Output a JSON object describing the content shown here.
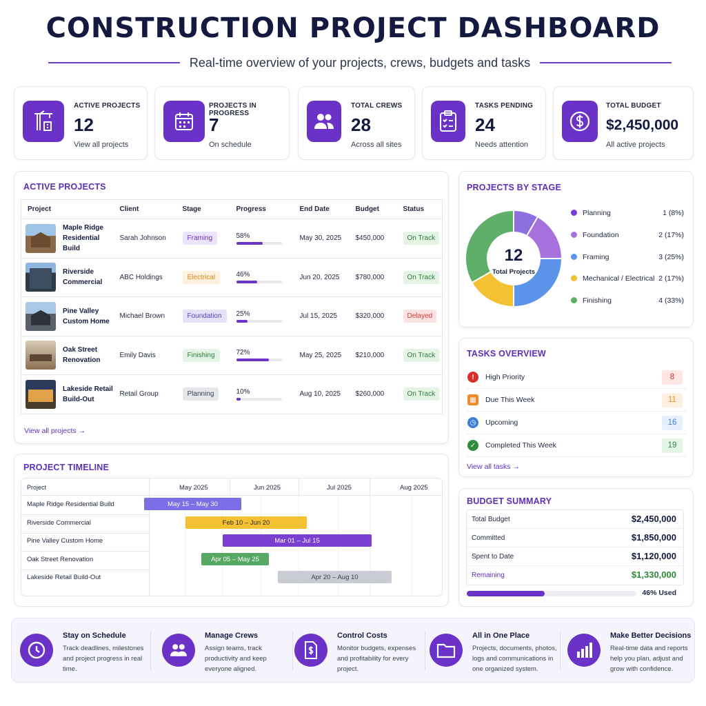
{
  "header": {
    "title": "CONSTRUCTION PROJECT DASHBOARD",
    "subtitle": "Real-time overview of your projects, crews, budgets and tasks"
  },
  "stats": [
    {
      "label": "ACTIVE PROJECTS",
      "value": "12",
      "note": "View all projects",
      "icon": "crane-icon"
    },
    {
      "label": "PROJECTS IN PROGRESS",
      "value": "7",
      "note": "On schedule",
      "icon": "calendar-icon"
    },
    {
      "label": "TOTAL CREWS",
      "value": "28",
      "note": "Across all sites",
      "icon": "crew-icon"
    },
    {
      "label": "TASKS PENDING",
      "value": "24",
      "note": "Needs attention",
      "icon": "clipboard-icon"
    },
    {
      "label": "TOTAL BUDGET",
      "value": "$2,450,000",
      "note": "All active projects",
      "icon": "dollar-icon"
    }
  ],
  "active_projects": {
    "title": "ACTIVE PROJECTS",
    "columns": [
      "Project",
      "Client",
      "Stage",
      "Progress",
      "End Date",
      "Budget",
      "Status"
    ],
    "rows": [
      {
        "project": "Maple Ridge Residential Build",
        "client": "Sarah Johnson",
        "stage": "Framing",
        "progress": "58%",
        "progress_value": 0.58,
        "end_date": "May 30, 2025",
        "budget": "$450,000",
        "status": "On Track"
      },
      {
        "project": "Riverside Commercial",
        "client": "ABC Holdings",
        "stage": "Electrical",
        "progress": "46%",
        "progress_value": 0.46,
        "end_date": "Jun 20, 2025",
        "budget": "$780,000",
        "status": "On Track"
      },
      {
        "project": "Pine Valley Custom Home",
        "client": "Michael Brown",
        "stage": "Foundation",
        "progress": "25%",
        "progress_value": 0.25,
        "end_date": "Jul 15, 2025",
        "budget": "$320,000",
        "status": "Delayed"
      },
      {
        "project": "Oak Street Renovation",
        "client": "Emily Davis",
        "stage": "Finishing",
        "progress": "72%",
        "progress_value": 0.72,
        "end_date": "May 25, 2025",
        "budget": "$210,000",
        "status": "On Track"
      },
      {
        "project": "Lakeside Retail Build-Out",
        "client": "Retail Group",
        "stage": "Planning",
        "progress": "10%",
        "progress_value": 0.1,
        "end_date": "Aug 10, 2025",
        "budget": "$260,000",
        "status": "On Track"
      }
    ],
    "view_all": "View all projects →"
  },
  "timeline": {
    "title": "PROJECT TIMELINE",
    "header_project": "Project",
    "months": [
      "May 2025",
      "Jun 2025",
      "Jul 2025",
      "Aug 2025"
    ],
    "rows": [
      {
        "name": "Maple Ridge Residential Build",
        "range": "May 15 – May 30"
      },
      {
        "name": "Riverside Commercial",
        "range": "Feb 10 – Jun 20"
      },
      {
        "name": "Pine Valley Custom Home",
        "range": "Mar 01 – Jul 15"
      },
      {
        "name": "Oak Street Renovation",
        "range": "Apr 05 – May 25"
      },
      {
        "name": "Lakeside Retail Build-Out",
        "range": "Apr 20 – Aug 10"
      }
    ]
  },
  "projects_by_stage": {
    "title": "PROJECTS BY STAGE",
    "center_value": "12",
    "center_label": "Total Projects",
    "items": [
      {
        "name": "Planning",
        "count": "1 (8%)",
        "color": "#8e6fe0"
      },
      {
        "name": "Foundation",
        "count": "2 (17%)",
        "color": "#a872de"
      },
      {
        "name": "Framing",
        "count": "3 (25%)",
        "color": "#5b94e8"
      },
      {
        "name": "Mechanical / Electrical",
        "count": "2 (17%)",
        "color": "#f4c132"
      },
      {
        "name": "Finishing",
        "count": "4 (33%)",
        "color": "#5fae6a"
      }
    ]
  },
  "chart_data": {
    "type": "pie",
    "categories": [
      "Planning",
      "Foundation",
      "Framing",
      "Mechanical / Electrical",
      "Finishing"
    ],
    "values": [
      1,
      2,
      3,
      2,
      4
    ]
  },
  "tasks": {
    "title": "TASKS OVERVIEW",
    "items": [
      {
        "label": "High Priority",
        "count": "8",
        "color": "#d9302c",
        "bg": "#fde6e4",
        "icon": "alert-icon"
      },
      {
        "label": "Due This Week",
        "count": "11",
        "color": "#ee8a2a",
        "bg": "#fdf0e0",
        "icon": "calendar-icon"
      },
      {
        "label": "Upcoming",
        "count": "16",
        "color": "#3c7fd6",
        "bg": "#e6f0fc",
        "icon": "clock-icon"
      },
      {
        "label": "Completed This Week",
        "count": "19",
        "color": "#2e8b3a",
        "bg": "#e4f4e6",
        "icon": "check-icon"
      }
    ],
    "view_all": "View all tasks →"
  },
  "budget": {
    "title": "BUDGET SUMMARY",
    "rows": [
      {
        "label": "Total Budget",
        "value": "$2,450,000"
      },
      {
        "label": "Committed",
        "value": "$1,850,000"
      },
      {
        "label": "Spent to Date",
        "value": "$1,120,000"
      },
      {
        "label": "Remaining",
        "value": "$1,330,000"
      }
    ],
    "used_label": "46% Used",
    "used_value": 0.46
  },
  "benefits": [
    {
      "title": "Stay on Schedule",
      "desc": "Track deadlines, milestones and project progress in real time.",
      "icon": "clock-icon"
    },
    {
      "title": "Manage Crews",
      "desc": "Assign teams, track productivity and keep everyone aligned.",
      "icon": "crew-icon"
    },
    {
      "title": "Control Costs",
      "desc": "Monitor budgets, expenses and profitability for every project.",
      "icon": "invoice-icon"
    },
    {
      "title": "All in One Place",
      "desc": "Projects, documents, photos, logs and communications in one organized system.",
      "icon": "folder-icon"
    },
    {
      "title": "Make Better Decisions",
      "desc": "Real-time data and reports help you plan, adjust and grow with confidence.",
      "icon": "bar-chart-icon"
    }
  ]
}
